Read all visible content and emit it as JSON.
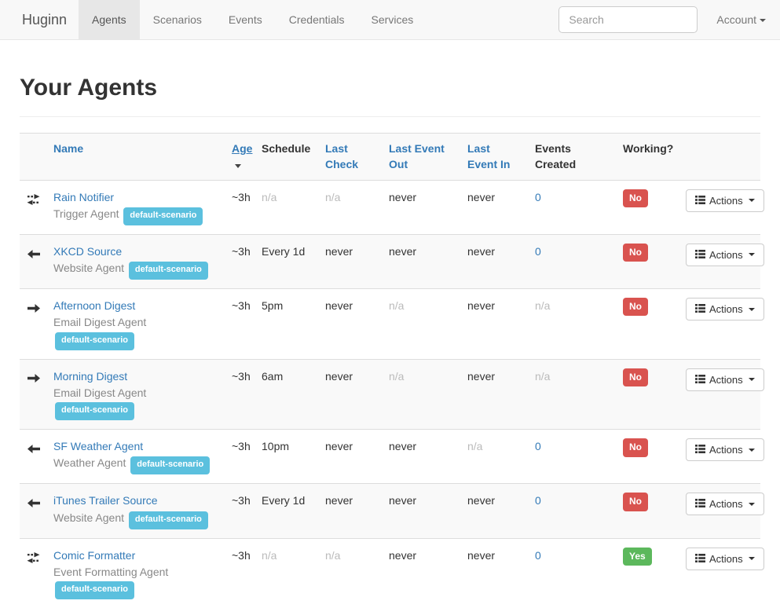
{
  "navbar": {
    "brand": "Huginn",
    "tabs": [
      {
        "label": "Agents",
        "active": true
      },
      {
        "label": "Scenarios",
        "active": false
      },
      {
        "label": "Events",
        "active": false
      },
      {
        "label": "Credentials",
        "active": false
      },
      {
        "label": "Services",
        "active": false
      }
    ],
    "search_placeholder": "Search",
    "account_label": "Account"
  },
  "page": {
    "title": "Your Agents"
  },
  "colors": {
    "link_blue": "#337ab7",
    "badge_info": "#5bc0de",
    "badge_danger": "#d9534f",
    "badge_success": "#5cb85c"
  },
  "table": {
    "headers": [
      {
        "label": "Name",
        "link": true
      },
      {
        "label": "Age",
        "link": true,
        "sorted": true
      },
      {
        "label": "Schedule",
        "link": false
      },
      {
        "label": "Last Check",
        "link": true
      },
      {
        "label": "Last Event Out",
        "link": true
      },
      {
        "label": "Last Event In",
        "link": true
      },
      {
        "label": "Events Created",
        "link": false
      },
      {
        "label": "Working?",
        "link": false
      }
    ],
    "actions_label": "Actions",
    "rows": [
      {
        "icon": "exchange-icon",
        "name": "Rain Notifier",
        "agent_type": "Trigger Agent",
        "scenario": "default-scenario",
        "age": {
          "text": "~3h"
        },
        "schedule": {
          "text": "n/a",
          "muted": true
        },
        "last_check": {
          "text": "n/a",
          "muted": true
        },
        "last_event_out": {
          "text": "never"
        },
        "last_event_in": {
          "text": "never"
        },
        "events_created": {
          "text": "0",
          "link": true
        },
        "working": {
          "text": "No",
          "status": "danger"
        }
      },
      {
        "icon": "arrow-left-icon",
        "name": "XKCD Source",
        "agent_type": "Website Agent",
        "scenario": "default-scenario",
        "age": {
          "text": "~3h"
        },
        "schedule": {
          "text": "Every 1d"
        },
        "last_check": {
          "text": "never"
        },
        "last_event_out": {
          "text": "never"
        },
        "last_event_in": {
          "text": "never"
        },
        "events_created": {
          "text": "0",
          "link": true
        },
        "working": {
          "text": "No",
          "status": "danger"
        }
      },
      {
        "icon": "arrow-right-icon",
        "name": "Afternoon Digest",
        "agent_type": "Email Digest Agent",
        "scenario": "default-scenario",
        "age": {
          "text": "~3h"
        },
        "schedule": {
          "text": "5pm"
        },
        "last_check": {
          "text": "never"
        },
        "last_event_out": {
          "text": "n/a",
          "muted": true
        },
        "last_event_in": {
          "text": "never"
        },
        "events_created": {
          "text": "n/a",
          "muted": true
        },
        "working": {
          "text": "No",
          "status": "danger"
        }
      },
      {
        "icon": "arrow-right-icon",
        "name": "Morning Digest",
        "agent_type": "Email Digest Agent",
        "scenario": "default-scenario",
        "age": {
          "text": "~3h"
        },
        "schedule": {
          "text": "6am"
        },
        "last_check": {
          "text": "never"
        },
        "last_event_out": {
          "text": "n/a",
          "muted": true
        },
        "last_event_in": {
          "text": "never"
        },
        "events_created": {
          "text": "n/a",
          "muted": true
        },
        "working": {
          "text": "No",
          "status": "danger"
        }
      },
      {
        "icon": "arrow-left-icon",
        "name": "SF Weather Agent",
        "agent_type": "Weather Agent",
        "scenario": "default-scenario",
        "age": {
          "text": "~3h"
        },
        "schedule": {
          "text": "10pm"
        },
        "last_check": {
          "text": "never"
        },
        "last_event_out": {
          "text": "never"
        },
        "last_event_in": {
          "text": "n/a",
          "muted": true
        },
        "events_created": {
          "text": "0",
          "link": true
        },
        "working": {
          "text": "No",
          "status": "danger"
        }
      },
      {
        "icon": "arrow-left-icon",
        "name": "iTunes Trailer Source",
        "agent_type": "Website Agent",
        "scenario": "default-scenario",
        "age": {
          "text": "~3h"
        },
        "schedule": {
          "text": "Every 1d"
        },
        "last_check": {
          "text": "never"
        },
        "last_event_out": {
          "text": "never"
        },
        "last_event_in": {
          "text": "never"
        },
        "events_created": {
          "text": "0",
          "link": true
        },
        "working": {
          "text": "No",
          "status": "danger"
        }
      },
      {
        "icon": "exchange-icon",
        "name": "Comic Formatter",
        "agent_type": "Event Formatting Agent",
        "scenario": "default-scenario",
        "age": {
          "text": "~3h"
        },
        "schedule": {
          "text": "n/a",
          "muted": true
        },
        "last_check": {
          "text": "n/a",
          "muted": true
        },
        "last_event_out": {
          "text": "never"
        },
        "last_event_in": {
          "text": "never"
        },
        "events_created": {
          "text": "0",
          "link": true
        },
        "working": {
          "text": "Yes",
          "status": "success"
        }
      }
    ]
  }
}
